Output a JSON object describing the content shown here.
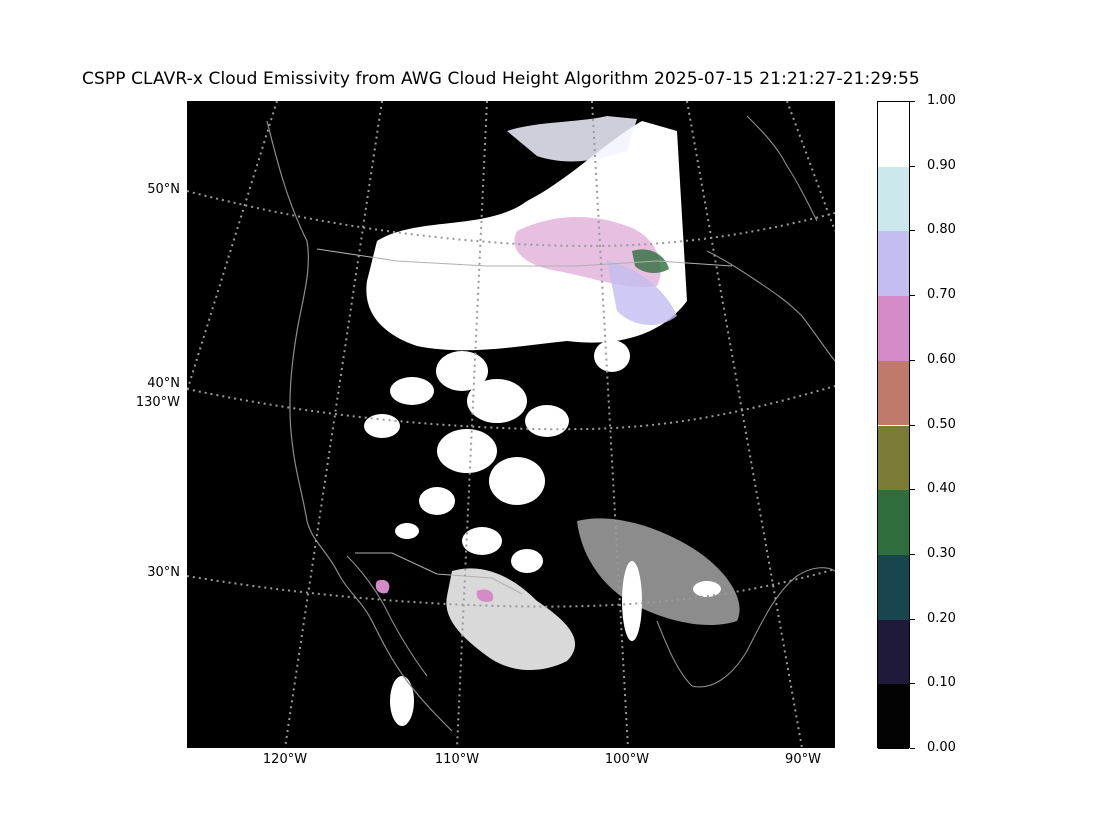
{
  "title": "CSPP CLAVR-x Cloud Emissivity from AWG Cloud Height Algorithm 2025-07-15 21:21:27-21:29:55",
  "map": {
    "background_color": "#000000",
    "latitude_labels": [
      "50°N",
      "40°N",
      "130°W",
      "30°N"
    ],
    "longitude_labels": [
      "120°W",
      "110°W",
      "100°W",
      "90°W"
    ],
    "graticule_color": "#9a9a9a",
    "coastline_color": "#8c8c8c"
  },
  "colorbar": {
    "range": [
      0.0,
      1.0
    ],
    "tick_labels": [
      "1.00",
      "0.90",
      "0.80",
      "0.70",
      "0.60",
      "0.50",
      "0.40",
      "0.30",
      "0.20",
      "0.10",
      "0.00"
    ],
    "bins": [
      {
        "from": 0.0,
        "to": 0.1,
        "color": "#030303"
      },
      {
        "from": 0.1,
        "to": 0.2,
        "color": "#1f1a3a"
      },
      {
        "from": 0.2,
        "to": 0.3,
        "color": "#17464e"
      },
      {
        "from": 0.3,
        "to": 0.4,
        "color": "#2e6e3c"
      },
      {
        "from": 0.4,
        "to": 0.5,
        "color": "#7a7c36"
      },
      {
        "from": 0.5,
        "to": 0.6,
        "color": "#c07a6c"
      },
      {
        "from": 0.6,
        "to": 0.7,
        "color": "#d48cc8"
      },
      {
        "from": 0.7,
        "to": 0.8,
        "color": "#c3bdf0"
      },
      {
        "from": 0.8,
        "to": 0.9,
        "color": "#cbe9ec"
      },
      {
        "from": 0.9,
        "to": 1.0,
        "color": "#ffffff"
      }
    ]
  }
}
